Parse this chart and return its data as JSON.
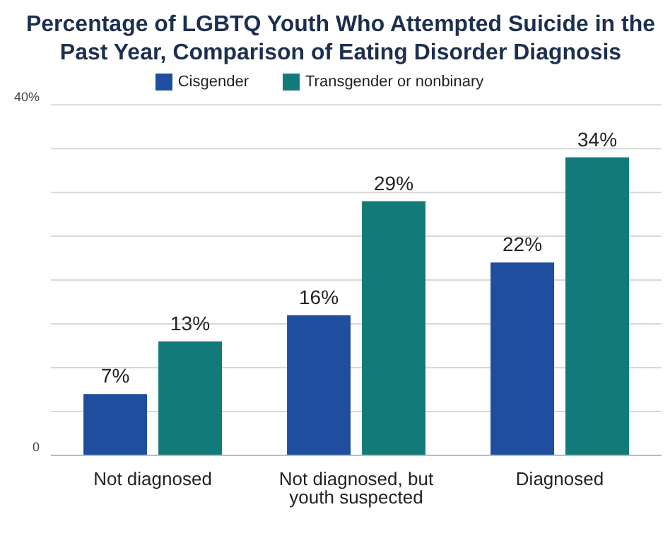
{
  "chart_data": {
    "type": "bar",
    "title": "Percentage of LGBTQ Youth Who Attempted Suicide in the Past Year, Comparison of Eating Disorder Diagnosis",
    "categories": [
      "Not diagnosed",
      "Not diagnosed, but youth suspected",
      "Diagnosed"
    ],
    "series": [
      {
        "name": "Cisgender",
        "color": "#1f4e9e",
        "values": [
          7,
          16,
          22
        ],
        "value_labels": [
          "7%",
          "16%",
          "22%"
        ]
      },
      {
        "name": "Transgender or nonbinary",
        "color": "#137a7a",
        "values": [
          13,
          29,
          34
        ],
        "value_labels": [
          "13%",
          "29%",
          "34%"
        ]
      }
    ],
    "ylim": [
      0,
      40
    ],
    "yticks": [
      0,
      {
        "value": 5,
        "label": null
      },
      {
        "value": 10,
        "label": null
      },
      {
        "value": 15,
        "label": null
      },
      {
        "value": 20,
        "label": null
      },
      {
        "value": 25,
        "label": null
      },
      {
        "value": 30,
        "label": null
      },
      {
        "value": 35,
        "label": null
      },
      {
        "value": 40,
        "label": "40%"
      }
    ],
    "grid": "y",
    "legend": "top"
  }
}
